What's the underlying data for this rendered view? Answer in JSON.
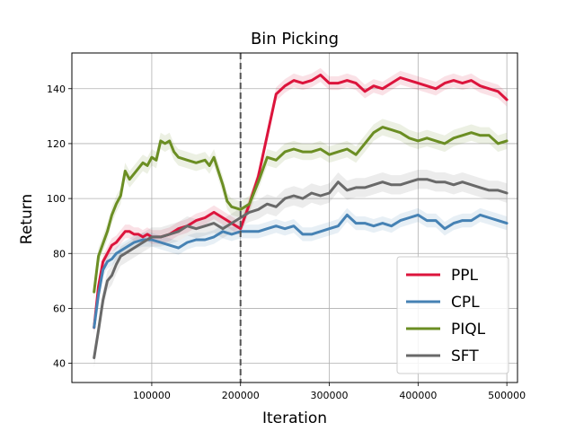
{
  "chart_data": {
    "type": "line",
    "title": "Bin Picking",
    "xlabel": "Iteration",
    "ylabel": "Return",
    "xlim": [
      10000,
      512000
    ],
    "ylim": [
      33,
      153
    ],
    "xticks": [
      100000,
      200000,
      300000,
      400000,
      500000
    ],
    "yticks": [
      40,
      60,
      80,
      100,
      120,
      140
    ],
    "grid": true,
    "legend_position": "lower-right",
    "vline": {
      "x": 200000,
      "style": "dashed"
    },
    "series": [
      {
        "name": "PPL",
        "color": "#dc143c",
        "points": [
          [
            35000,
            53
          ],
          [
            40000,
            68
          ],
          [
            45000,
            77
          ],
          [
            50000,
            80
          ],
          [
            55000,
            83
          ],
          [
            60000,
            84
          ],
          [
            65000,
            86
          ],
          [
            70000,
            88
          ],
          [
            75000,
            88
          ],
          [
            80000,
            87
          ],
          [
            85000,
            87
          ],
          [
            90000,
            86
          ],
          [
            95000,
            87
          ],
          [
            100000,
            86
          ],
          [
            110000,
            86
          ],
          [
            120000,
            87
          ],
          [
            130000,
            89
          ],
          [
            140000,
            90
          ],
          [
            150000,
            92
          ],
          [
            160000,
            93
          ],
          [
            170000,
            95
          ],
          [
            180000,
            93
          ],
          [
            190000,
            91
          ],
          [
            200000,
            89
          ],
          [
            210000,
            98
          ],
          [
            220000,
            108
          ],
          [
            230000,
            123
          ],
          [
            240000,
            138
          ],
          [
            250000,
            141
          ],
          [
            260000,
            143
          ],
          [
            270000,
            142
          ],
          [
            280000,
            143
          ],
          [
            290000,
            145
          ],
          [
            300000,
            142
          ],
          [
            310000,
            142
          ],
          [
            320000,
            143
          ],
          [
            330000,
            142
          ],
          [
            340000,
            139
          ],
          [
            350000,
            141
          ],
          [
            360000,
            140
          ],
          [
            370000,
            142
          ],
          [
            380000,
            144
          ],
          [
            390000,
            143
          ],
          [
            400000,
            142
          ],
          [
            410000,
            141
          ],
          [
            420000,
            140
          ],
          [
            430000,
            142
          ],
          [
            440000,
            143
          ],
          [
            450000,
            142
          ],
          [
            460000,
            143
          ],
          [
            470000,
            141
          ],
          [
            480000,
            140
          ],
          [
            490000,
            139
          ],
          [
            500000,
            136
          ]
        ],
        "band": 2.5
      },
      {
        "name": "CPL",
        "color": "#4682b4",
        "points": [
          [
            35000,
            53
          ],
          [
            40000,
            65
          ],
          [
            45000,
            74
          ],
          [
            50000,
            77
          ],
          [
            55000,
            78
          ],
          [
            60000,
            80
          ],
          [
            70000,
            82
          ],
          [
            80000,
            84
          ],
          [
            90000,
            85
          ],
          [
            100000,
            85
          ],
          [
            110000,
            84
          ],
          [
            120000,
            83
          ],
          [
            130000,
            82
          ],
          [
            140000,
            84
          ],
          [
            150000,
            85
          ],
          [
            160000,
            85
          ],
          [
            170000,
            86
          ],
          [
            180000,
            88
          ],
          [
            190000,
            87
          ],
          [
            200000,
            88
          ],
          [
            210000,
            88
          ],
          [
            220000,
            88
          ],
          [
            230000,
            89
          ],
          [
            240000,
            90
          ],
          [
            250000,
            89
          ],
          [
            260000,
            90
          ],
          [
            270000,
            87
          ],
          [
            280000,
            87
          ],
          [
            290000,
            88
          ],
          [
            300000,
            89
          ],
          [
            310000,
            90
          ],
          [
            320000,
            94
          ],
          [
            330000,
            91
          ],
          [
            340000,
            91
          ],
          [
            350000,
            90
          ],
          [
            360000,
            91
          ],
          [
            370000,
            90
          ],
          [
            380000,
            92
          ],
          [
            390000,
            93
          ],
          [
            400000,
            94
          ],
          [
            410000,
            92
          ],
          [
            420000,
            92
          ],
          [
            430000,
            89
          ],
          [
            440000,
            91
          ],
          [
            450000,
            92
          ],
          [
            460000,
            92
          ],
          [
            470000,
            94
          ],
          [
            480000,
            93
          ],
          [
            490000,
            92
          ],
          [
            500000,
            91
          ]
        ],
        "band": 2.5
      },
      {
        "name": "PIQL",
        "color": "#6b8e23",
        "points": [
          [
            35000,
            66
          ],
          [
            40000,
            79
          ],
          [
            50000,
            88
          ],
          [
            55000,
            94
          ],
          [
            60000,
            98
          ],
          [
            65000,
            101
          ],
          [
            70000,
            110
          ],
          [
            75000,
            107
          ],
          [
            80000,
            109
          ],
          [
            90000,
            113
          ],
          [
            95000,
            112
          ],
          [
            100000,
            115
          ],
          [
            105000,
            114
          ],
          [
            110000,
            121
          ],
          [
            115000,
            120
          ],
          [
            120000,
            121
          ],
          [
            125000,
            117
          ],
          [
            130000,
            115
          ],
          [
            140000,
            114
          ],
          [
            150000,
            113
          ],
          [
            160000,
            114
          ],
          [
            165000,
            112
          ],
          [
            170000,
            115
          ],
          [
            175000,
            110
          ],
          [
            180000,
            105
          ],
          [
            185000,
            99
          ],
          [
            190000,
            97
          ],
          [
            200000,
            96
          ],
          [
            210000,
            98
          ],
          [
            220000,
            106
          ],
          [
            230000,
            115
          ],
          [
            240000,
            114
          ],
          [
            250000,
            117
          ],
          [
            260000,
            118
          ],
          [
            270000,
            117
          ],
          [
            280000,
            117
          ],
          [
            290000,
            118
          ],
          [
            300000,
            116
          ],
          [
            310000,
            117
          ],
          [
            320000,
            118
          ],
          [
            330000,
            116
          ],
          [
            340000,
            120
          ],
          [
            350000,
            124
          ],
          [
            360000,
            126
          ],
          [
            370000,
            125
          ],
          [
            380000,
            124
          ],
          [
            390000,
            122
          ],
          [
            400000,
            121
          ],
          [
            410000,
            122
          ],
          [
            420000,
            121
          ],
          [
            430000,
            120
          ],
          [
            440000,
            122
          ],
          [
            450000,
            123
          ],
          [
            460000,
            124
          ],
          [
            470000,
            123
          ],
          [
            480000,
            123
          ],
          [
            490000,
            120
          ],
          [
            500000,
            121
          ]
        ],
        "band": 3
      },
      {
        "name": "SFT",
        "color": "#696969",
        "points": [
          [
            35000,
            42
          ],
          [
            40000,
            52
          ],
          [
            45000,
            63
          ],
          [
            50000,
            70
          ],
          [
            55000,
            72
          ],
          [
            60000,
            76
          ],
          [
            65000,
            79
          ],
          [
            70000,
            80
          ],
          [
            80000,
            82
          ],
          [
            90000,
            84
          ],
          [
            100000,
            86
          ],
          [
            110000,
            86
          ],
          [
            120000,
            87
          ],
          [
            130000,
            88
          ],
          [
            140000,
            90
          ],
          [
            150000,
            89
          ],
          [
            160000,
            90
          ],
          [
            170000,
            91
          ],
          [
            180000,
            89
          ],
          [
            190000,
            91
          ],
          [
            200000,
            93
          ],
          [
            210000,
            95
          ],
          [
            220000,
            96
          ],
          [
            230000,
            98
          ],
          [
            240000,
            97
          ],
          [
            250000,
            100
          ],
          [
            260000,
            101
          ],
          [
            270000,
            100
          ],
          [
            280000,
            102
          ],
          [
            290000,
            101
          ],
          [
            300000,
            102
          ],
          [
            310000,
            106
          ],
          [
            320000,
            103
          ],
          [
            330000,
            104
          ],
          [
            340000,
            104
          ],
          [
            350000,
            105
          ],
          [
            360000,
            106
          ],
          [
            370000,
            105
          ],
          [
            380000,
            105
          ],
          [
            390000,
            106
          ],
          [
            400000,
            107
          ],
          [
            410000,
            107
          ],
          [
            420000,
            106
          ],
          [
            430000,
            106
          ],
          [
            440000,
            105
          ],
          [
            450000,
            106
          ],
          [
            460000,
            105
          ],
          [
            470000,
            104
          ],
          [
            480000,
            103
          ],
          [
            490000,
            103
          ],
          [
            500000,
            102
          ]
        ],
        "band": 3.5
      }
    ]
  }
}
